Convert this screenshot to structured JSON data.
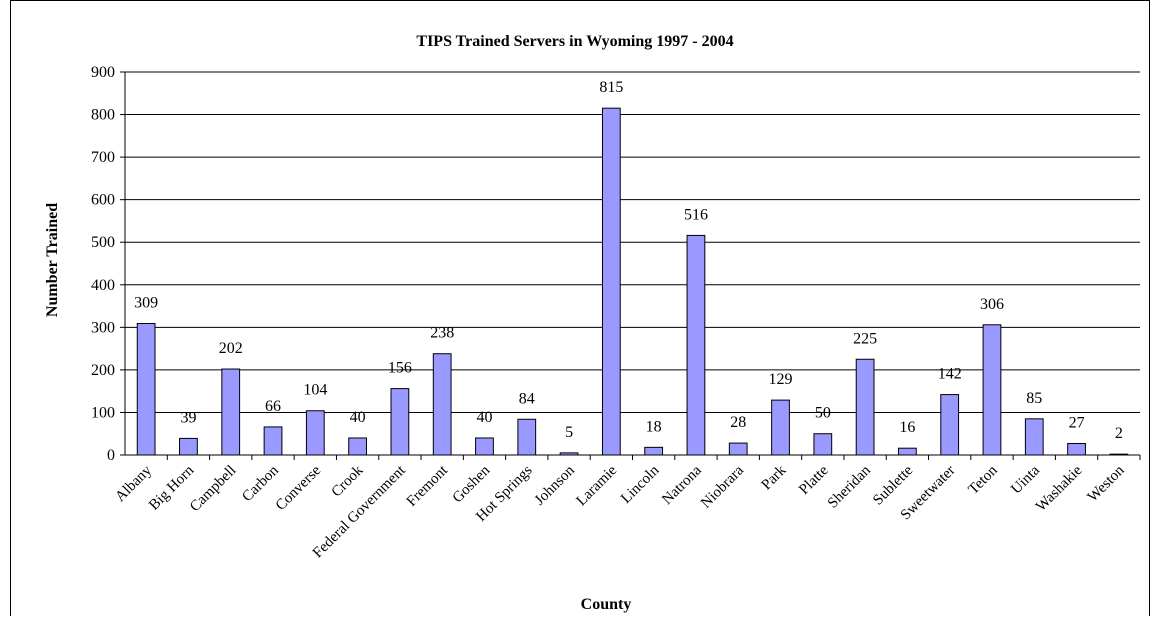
{
  "chart_data": {
    "type": "bar",
    "title": "TIPS Trained Servers in Wyoming 1997 - 2004",
    "xlabel": "County",
    "ylabel": "Number Trained",
    "ylim": [
      0,
      900
    ],
    "yticks": [
      0,
      100,
      200,
      300,
      400,
      500,
      600,
      700,
      800,
      900
    ],
    "grid": true,
    "legend": "none",
    "bar_color": "#9999ff",
    "categories": [
      "Albany",
      "Big Horn",
      "Campbell",
      "Carbon",
      "Converse",
      "Crook",
      "Federal Government",
      "Fremont",
      "Goshen",
      "Hot Springs",
      "Johnson",
      "Laramie",
      "Lincoln",
      "Natrona",
      "Niobrara",
      "Park",
      "Platte",
      "Sheridan",
      "Sublette",
      "Sweetwater",
      "Teton",
      "Uinta",
      "Washakie",
      "Weston"
    ],
    "values": [
      309,
      39,
      202,
      66,
      104,
      40,
      156,
      238,
      40,
      84,
      5,
      815,
      18,
      516,
      28,
      129,
      50,
      225,
      16,
      142,
      306,
      85,
      27,
      2
    ]
  }
}
